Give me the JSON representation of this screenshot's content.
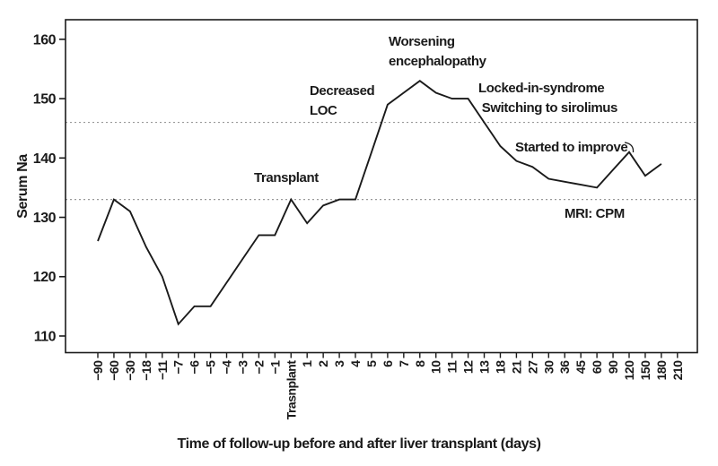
{
  "chart_data": {
    "type": "line",
    "title": "",
    "ylabel": "Serum Na",
    "xlabel": "Time of follow-up before and after liver transplant (days)",
    "categories": [
      "−90",
      "−60",
      "−30",
      "−18",
      "−11",
      "−7",
      "−6",
      "−5",
      "−4",
      "−3",
      "−2",
      "−1",
      "Trasnplant",
      "1",
      "2",
      "3",
      "4",
      "5",
      "6",
      "7",
      "8",
      "10",
      "11",
      "12",
      "13",
      "18",
      "21",
      "27",
      "30",
      "36",
      "45",
      "60",
      "90",
      "120",
      "150",
      "180",
      "210"
    ],
    "values": [
      126,
      133,
      131,
      125,
      120,
      112,
      115,
      115,
      119,
      123,
      127,
      127,
      133,
      129,
      132,
      133,
      133,
      141,
      149,
      151,
      153,
      151,
      150,
      150,
      146,
      142,
      139.5,
      138.5,
      136.5,
      136,
      135.5,
      135,
      138,
      141,
      137,
      139,
      null
    ],
    "y_ticks": [
      110,
      120,
      130,
      140,
      150,
      160
    ],
    "ylim": [
      107.2,
      163.3
    ],
    "reference_lines": [
      146,
      133
    ],
    "grid": "off",
    "legend": "none",
    "line_color": "#1a1a1a",
    "ref_line_color": "#999999",
    "frame_color": "#1a1a1a",
    "annotations": [
      {
        "id": "transplant",
        "text": "Transplant"
      },
      {
        "id": "decreased-loc",
        "text": "Decreased\nLOC"
      },
      {
        "id": "worsening-encephalopathy",
        "text": "Worsening\nencephalopathy"
      },
      {
        "id": "locked-in-syndrome",
        "text": "Locked-in-syndrome\n Switching to sirolimus"
      },
      {
        "id": "started-to-improve",
        "text": "Started to improve"
      },
      {
        "id": "mri-cpm",
        "text": "MRI: CPM"
      }
    ]
  }
}
